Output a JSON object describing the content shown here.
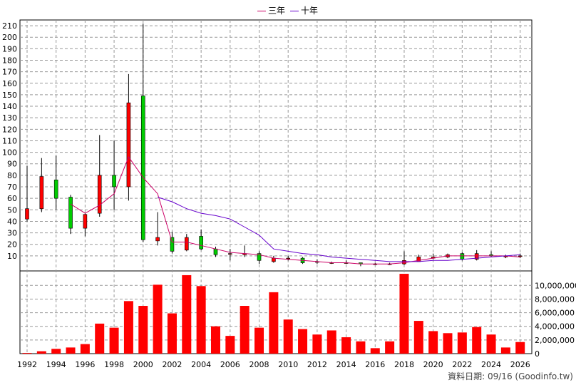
{
  "legend": {
    "three_year": {
      "label": "三年",
      "color": "#cc0066"
    },
    "ten_year": {
      "label": "十年",
      "color": "#6600cc"
    }
  },
  "source_text": "資料日期: 09/16 (Goodinfo.tw)",
  "chart_data": {
    "type": "candlestick",
    "x_tick_labels": [
      "1992",
      "1994",
      "1996",
      "1998",
      "2000",
      "2002",
      "2004",
      "2006",
      "2008",
      "2010",
      "2012",
      "2014",
      "2016",
      "2018",
      "2020",
      "2022",
      "2024",
      "2026"
    ],
    "price_axis": {
      "ticks": [
        10,
        20,
        30,
        40,
        50,
        60,
        70,
        80,
        90,
        100,
        110,
        120,
        130,
        140,
        150,
        160,
        170,
        180,
        190,
        200,
        210
      ],
      "range": [
        0,
        215
      ]
    },
    "volume_axis": {
      "ticks": [
        0,
        2000000,
        4000000,
        6000000,
        8000000,
        10000000
      ],
      "tick_labels": [
        "0",
        "2,000,000",
        "4,000,000",
        "6,000,000",
        "8,000,000",
        "10,000,000"
      ],
      "range": [
        0,
        11600000
      ]
    },
    "grid": true,
    "colors": {
      "up": "#ff0000",
      "down": "#00cc00",
      "volume": "#ff0000",
      "wick": "#000000"
    },
    "candles": [
      {
        "year": 1992,
        "open": 42,
        "high": 88,
        "low": 40,
        "close": 51
      },
      {
        "year": 1993,
        "open": 51,
        "high": 95,
        "low": 48,
        "close": 79
      },
      {
        "year": 1994,
        "open": 76,
        "high": 97,
        "low": 50,
        "close": 60
      },
      {
        "year": 1995,
        "open": 61,
        "high": 63,
        "low": 29,
        "close": 34
      },
      {
        "year": 1996,
        "open": 34,
        "high": 47,
        "low": 27,
        "close": 46
      },
      {
        "year": 1997,
        "open": 47,
        "high": 115,
        "low": 44,
        "close": 80
      },
      {
        "year": 1998,
        "open": 80,
        "high": 110,
        "low": 50,
        "close": 70
      },
      {
        "year": 1999,
        "open": 70,
        "high": 168,
        "low": 58,
        "close": 143
      },
      {
        "year": 2000,
        "open": 149,
        "high": 212,
        "low": 22,
        "close": 24
      },
      {
        "year": 2001,
        "open": 23,
        "high": 48,
        "low": 19,
        "close": 26
      },
      {
        "year": 2002,
        "open": 26,
        "high": 31,
        "low": 12,
        "close": 14
      },
      {
        "year": 2003,
        "open": 15,
        "high": 29,
        "low": 14,
        "close": 26
      },
      {
        "year": 2004,
        "open": 27,
        "high": 33,
        "low": 15,
        "close": 16
      },
      {
        "year": 2005,
        "open": 16,
        "high": 18,
        "low": 9,
        "close": 11
      },
      {
        "year": 2006,
        "open": 12,
        "high": 16,
        "low": 6,
        "close": 12
      },
      {
        "year": 2007,
        "open": 11,
        "high": 19,
        "low": 9,
        "close": 12
      },
      {
        "year": 2008,
        "open": 12,
        "high": 14,
        "low": 3,
        "close": 6
      },
      {
        "year": 2009,
        "open": 5,
        "high": 10,
        "low": 4,
        "close": 8
      },
      {
        "year": 2010,
        "open": 8,
        "high": 10,
        "low": 6,
        "close": 8
      },
      {
        "year": 2011,
        "open": 8,
        "high": 9,
        "low": 3,
        "close": 4
      },
      {
        "year": 2012,
        "open": 5,
        "high": 7,
        "low": 3,
        "close": 5
      },
      {
        "year": 2013,
        "open": 4,
        "high": 5,
        "low": 3,
        "close": 4
      },
      {
        "year": 2014,
        "open": 4,
        "high": 6,
        "low": 3,
        "close": 4
      },
      {
        "year": 2015,
        "open": 4,
        "high": 4,
        "low": 1,
        "close": 3
      },
      {
        "year": 2016,
        "open": 3,
        "high": 4,
        "low": 2,
        "close": 3
      },
      {
        "year": 2017,
        "open": 3,
        "high": 4,
        "low": 2,
        "close": 3
      },
      {
        "year": 2018,
        "open": 3,
        "high": 14,
        "low": 2,
        "close": 6
      },
      {
        "year": 2019,
        "open": 5,
        "high": 11,
        "low": 5,
        "close": 9
      },
      {
        "year": 2020,
        "open": 8,
        "high": 12,
        "low": 7,
        "close": 9
      },
      {
        "year": 2021,
        "open": 9,
        "high": 12,
        "low": 8,
        "close": 11
      },
      {
        "year": 2022,
        "open": 12,
        "high": 13,
        "low": 6,
        "close": 7
      },
      {
        "year": 2023,
        "open": 7,
        "high": 15,
        "low": 6,
        "close": 12
      },
      {
        "year": 2024,
        "open": 11,
        "high": 14,
        "low": 9,
        "close": 10
      },
      {
        "year": 2025,
        "open": 9,
        "high": 11,
        "low": 8,
        "close": 10
      },
      {
        "year": 2026,
        "open": 10,
        "high": 12,
        "low": 8,
        "close": 10
      }
    ],
    "volume": [
      {
        "year": 1992,
        "value": 100000
      },
      {
        "year": 1993,
        "value": 350000
      },
      {
        "year": 1994,
        "value": 700000
      },
      {
        "year": 1995,
        "value": 900000
      },
      {
        "year": 1996,
        "value": 1400000
      },
      {
        "year": 1997,
        "value": 4400000
      },
      {
        "year": 1998,
        "value": 3800000
      },
      {
        "year": 1999,
        "value": 7700000
      },
      {
        "year": 2000,
        "value": 7000000
      },
      {
        "year": 2001,
        "value": 10100000
      },
      {
        "year": 2002,
        "value": 5900000
      },
      {
        "year": 2003,
        "value": 11500000
      },
      {
        "year": 2004,
        "value": 9900000
      },
      {
        "year": 2005,
        "value": 4000000
      },
      {
        "year": 2006,
        "value": 2600000
      },
      {
        "year": 2007,
        "value": 7000000
      },
      {
        "year": 2008,
        "value": 3800000
      },
      {
        "year": 2009,
        "value": 9000000
      },
      {
        "year": 2010,
        "value": 5000000
      },
      {
        "year": 2011,
        "value": 3600000
      },
      {
        "year": 2012,
        "value": 2800000
      },
      {
        "year": 2013,
        "value": 3400000
      },
      {
        "year": 2014,
        "value": 2400000
      },
      {
        "year": 2015,
        "value": 1800000
      },
      {
        "year": 2016,
        "value": 800000
      },
      {
        "year": 2017,
        "value": 1800000
      },
      {
        "year": 2018,
        "value": 11700000
      },
      {
        "year": 2019,
        "value": 4800000
      },
      {
        "year": 2020,
        "value": 3300000
      },
      {
        "year": 2021,
        "value": 3000000
      },
      {
        "year": 2022,
        "value": 3100000
      },
      {
        "year": 2023,
        "value": 3900000
      },
      {
        "year": 2024,
        "value": 2800000
      },
      {
        "year": 2025,
        "value": 900000
      },
      {
        "year": 2026,
        "value": 1700000
      }
    ],
    "series": [
      {
        "name": "三年",
        "color": "#cc0066",
        "points": [
          {
            "year": 1995,
            "value": 55
          },
          {
            "year": 1996,
            "value": 47
          },
          {
            "year": 1997,
            "value": 54
          },
          {
            "year": 1998,
            "value": 64
          },
          {
            "year": 1999,
            "value": 96
          },
          {
            "year": 2000,
            "value": 78
          },
          {
            "year": 2001,
            "value": 64
          },
          {
            "year": 2002,
            "value": 22
          },
          {
            "year": 2003,
            "value": 22
          },
          {
            "year": 2004,
            "value": 19
          },
          {
            "year": 2005,
            "value": 16
          },
          {
            "year": 2006,
            "value": 13
          },
          {
            "year": 2007,
            "value": 12
          },
          {
            "year": 2008,
            "value": 11
          },
          {
            "year": 2009,
            "value": 8
          },
          {
            "year": 2010,
            "value": 7
          },
          {
            "year": 2011,
            "value": 6
          },
          {
            "year": 2012,
            "value": 5
          },
          {
            "year": 2013,
            "value": 4
          },
          {
            "year": 2014,
            "value": 4
          },
          {
            "year": 2015,
            "value": 3
          },
          {
            "year": 2016,
            "value": 3
          },
          {
            "year": 2017,
            "value": 3
          },
          {
            "year": 2018,
            "value": 4
          },
          {
            "year": 2019,
            "value": 6
          },
          {
            "year": 2020,
            "value": 8
          },
          {
            "year": 2021,
            "value": 10
          },
          {
            "year": 2022,
            "value": 10
          },
          {
            "year": 2023,
            "value": 10
          },
          {
            "year": 2024,
            "value": 10
          },
          {
            "year": 2025,
            "value": 10
          },
          {
            "year": 2026,
            "value": 9
          }
        ]
      },
      {
        "name": "十年",
        "color": "#6600cc",
        "points": [
          {
            "year": 2001,
            "value": 61
          },
          {
            "year": 2002,
            "value": 57
          },
          {
            "year": 2003,
            "value": 51
          },
          {
            "year": 2004,
            "value": 47
          },
          {
            "year": 2005,
            "value": 45
          },
          {
            "year": 2006,
            "value": 42
          },
          {
            "year": 2007,
            "value": 35
          },
          {
            "year": 2008,
            "value": 28
          },
          {
            "year": 2009,
            "value": 16
          },
          {
            "year": 2010,
            "value": 14
          },
          {
            "year": 2011,
            "value": 12
          },
          {
            "year": 2012,
            "value": 11
          },
          {
            "year": 2013,
            "value": 9
          },
          {
            "year": 2014,
            "value": 8
          },
          {
            "year": 2015,
            "value": 7
          },
          {
            "year": 2016,
            "value": 6
          },
          {
            "year": 2017,
            "value": 5
          },
          {
            "year": 2018,
            "value": 5
          },
          {
            "year": 2019,
            "value": 5
          },
          {
            "year": 2020,
            "value": 6
          },
          {
            "year": 2021,
            "value": 6
          },
          {
            "year": 2022,
            "value": 7
          },
          {
            "year": 2023,
            "value": 8
          },
          {
            "year": 2024,
            "value": 9
          },
          {
            "year": 2025,
            "value": 10
          },
          {
            "year": 2026,
            "value": 11
          }
        ]
      }
    ]
  }
}
